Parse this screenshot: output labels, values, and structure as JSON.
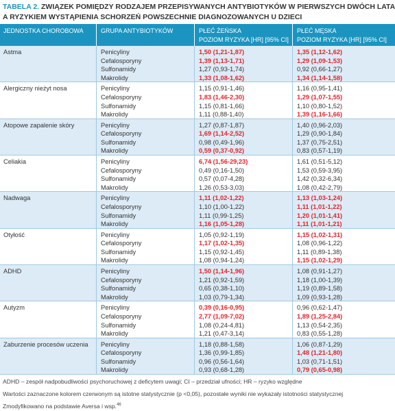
{
  "header": {
    "label": "TABELA 2.",
    "title_line1": "ZWIĄZEK POMIĘDZY RODZAJEM PRZEPISYWANYCH ANTYBIOTYKÓW W PIERWSZYCH DWÓCH LATACH ŻYCIA",
    "title_line2": "A RYZYKIEM WYSTĄPIENIA SCHORZEŃ POWSZECHNIE DIAGNOZOWANYCH U DZIECI"
  },
  "table": {
    "columns": {
      "disease": "JEDNOSTKA CHOROBOWA",
      "antibiotic": "GRUPA ANTYBIOTYKÓW",
      "female": "PŁEĆ ŻEŃSKA",
      "female_sub": "POZIOM RYZYKA [HR] [95% CI]",
      "male": "PŁEĆ MĘSKA",
      "male_sub": "POZIOM RYZYKA [HR] [95% CI]"
    },
    "significant_color": "#e3242b",
    "groups": [
      {
        "disease": "Astma",
        "rows": [
          {
            "antibiotic": "Penicyliny",
            "female": "1,50 (1,21-1,87)",
            "female_sig": true,
            "male": "1,35 (1,12-1,62)",
            "male_sig": true
          },
          {
            "antibiotic": "Cefalosporyny",
            "female": "1,39 (1,13-1,71)",
            "female_sig": true,
            "male": "1,29 (1,09-1,53)",
            "male_sig": true
          },
          {
            "antibiotic": "Sulfonamidy",
            "female": "1,27 (0,93-1,74)",
            "male": "0,92 (0,66-1,27)"
          },
          {
            "antibiotic": "Makrolidy",
            "female": "1,33 (1,08-1,62)",
            "female_sig": true,
            "male": "1,34 (1,14-1,58)",
            "male_sig": true
          }
        ]
      },
      {
        "disease": "Alergiczny nieżyt nosa",
        "rows": [
          {
            "antibiotic": "Penicyliny",
            "female": "1,15 (0,91-1,46)",
            "male": "1,16 (0,95-1,41)"
          },
          {
            "antibiotic": "Cefalosporyny",
            "female": "1,83 (1,46-2,30)",
            "female_sig": true,
            "male": "1,29 (1,07-1,55)",
            "male_sig": true
          },
          {
            "antibiotic": "Sulfonamidy",
            "female": "1,15 (0,81-1,66)",
            "male": "1,10 (0,80-1,52)"
          },
          {
            "antibiotic": "Makrolidy",
            "female": "1,11 (0,88-1,40)",
            "male": "1,39 (1,16-1,66)",
            "male_sig": true
          }
        ]
      },
      {
        "disease": "Atopowe zapalenie skóry",
        "rows": [
          {
            "antibiotic": "Penicyliny",
            "female": "1,27 (0,87-1,87)",
            "male": "1,40 (0,96-2,03)"
          },
          {
            "antibiotic": "Cefalosporyny",
            "female": "1,69 (1,14-2,52)",
            "female_sig": true,
            "male": "1,29 (0,90-1,84)"
          },
          {
            "antibiotic": "Sulfonamidy",
            "female": "0,98 (0,49-1,96)",
            "male": "1,37 (0,75-2,51)"
          },
          {
            "antibiotic": "Makrolidy",
            "female": "0,59 (0,37-0,92)",
            "female_sig": true,
            "male": "0,83 (0,57-1,19)"
          }
        ]
      },
      {
        "disease": "Celiakia",
        "rows": [
          {
            "antibiotic": "Penicyliny",
            "female": "6,74 (1,56-29,23)",
            "female_sig": true,
            "male": "1,61 (0,51-5,12)"
          },
          {
            "antibiotic": "Cefalosporyny",
            "female": "0,49 (0,16-1,50)",
            "male": "1,53 (0,59-3,95)"
          },
          {
            "antibiotic": "Sulfonamidy",
            "female": "0,57 (0,07-4,28)",
            "male": "1,42 (0,32-6,34)"
          },
          {
            "antibiotic": "Makrolidy",
            "female": "1,26 (0,53-3,03)",
            "male": "1,08 (0,42-2,79)"
          }
        ]
      },
      {
        "disease": "Nadwaga",
        "rows": [
          {
            "antibiotic": "Penicyliny",
            "female": "1,11 (1,02-1,22)",
            "female_sig": true,
            "male": "1,13 (1,03-1,24)",
            "male_sig": true
          },
          {
            "antibiotic": "Cefalosporyny",
            "female": "1,10 (1,00-1,22)",
            "male": "1,11 (1,01-1,22)",
            "male_sig": true
          },
          {
            "antibiotic": "Sulfonamidy",
            "female": "1,11 (0,99-1,25)",
            "male": "1,20 (1,01-1,41)",
            "male_sig": true
          },
          {
            "antibiotic": "Makrolidy",
            "female": "1,16 (1,05-1,28)",
            "female_sig": true,
            "male": "1,11 (1,01-1,21)",
            "male_sig": true
          }
        ]
      },
      {
        "disease": "Otyłość",
        "rows": [
          {
            "antibiotic": "Penicyliny",
            "female": "1,05 (0,92-1,19)",
            "male": "1,15 (1,02-1,31)",
            "male_sig": true
          },
          {
            "antibiotic": "Cefalosporyny",
            "female": "1,17 (1,02-1,35)",
            "female_sig": true,
            "male": "1,08 (0,96-1,22)"
          },
          {
            "antibiotic": "Sulfonamidy",
            "female": "1,15 (0,92-1,45)",
            "male": "1,11 (0,89-1,38)"
          },
          {
            "antibiotic": "Makrolidy",
            "female": "1,08 (0,94-1,24)",
            "male": "1,15 (1,02-1,29)",
            "male_sig": true
          }
        ]
      },
      {
        "disease": "ADHD",
        "rows": [
          {
            "antibiotic": "Penicyliny",
            "female": "1,50 (1,14-1,96)",
            "female_sig": true,
            "male": "1,08 (0,91-1,27)"
          },
          {
            "antibiotic": "Cefalosporyny",
            "female": "1,21 (0,92-1,59)",
            "male": "1,18 (1,00-1,39)"
          },
          {
            "antibiotic": "Sulfonamidy",
            "female": "0,65 (0,38-1,10)",
            "male": "1,19 (0,89-1,58)"
          },
          {
            "antibiotic": "Makrolidy",
            "female": "1,03 (0,79-1,34)",
            "male": "1,09 (0,93-1,28)"
          }
        ]
      },
      {
        "disease": "Autyzm",
        "rows": [
          {
            "antibiotic": "Penicyliny",
            "female": "0,39 (0,16-0,95)",
            "female_sig": true,
            "male": "0,96 (0,62-1,47)"
          },
          {
            "antibiotic": "Cefalosporyny",
            "female": "2,77 (1,09-7,02)",
            "female_sig": true,
            "male": "1,89 (1,25-2,84)",
            "male_sig": true
          },
          {
            "antibiotic": "Sulfonamidy",
            "female": "1,08 (0,24-4,81)",
            "male": "1,13 (0,54-2,35)"
          },
          {
            "antibiotic": "Makrolidy",
            "female": "1,21 (0,47-3,14)",
            "male": "0,83 (0,55-1,28)"
          }
        ]
      },
      {
        "disease": "Zaburzenie procesów uczenia",
        "rows": [
          {
            "antibiotic": "Penicyliny",
            "female": "1,18 (0,88-1,58)",
            "male": "1,06 (0,87-1,29)"
          },
          {
            "antibiotic": "Cefalosporyny",
            "female": "1,36 (0,99-1,85)",
            "male": "1,48 (1,21-1,80)",
            "male_sig": true
          },
          {
            "antibiotic": "Sulfonamidy",
            "female": "0,96 (0,56-1,64)",
            "male": "1,03 (0,71-1,51)"
          },
          {
            "antibiotic": "Makrolidy",
            "female": "0,93 (0,68-1,28)",
            "male": "0,79 (0,65-0,98)",
            "male_sig": true
          }
        ]
      }
    ]
  },
  "footnotes": {
    "abbreviations": "ADHD – zespół nadpobudliwości psychoruchowej z deficytem uwagi; CI – przedział ufności; HR – ryzyko względne",
    "significance": "Wartości zaznaczone kolorem czerwonym są istotne statystycznie (p <0,05), pozostałe wyniki nie wykazały istotności statystycznej",
    "source": "Zmodyfikowano na podstawie Aversa i wsp.",
    "source_ref": "46"
  }
}
